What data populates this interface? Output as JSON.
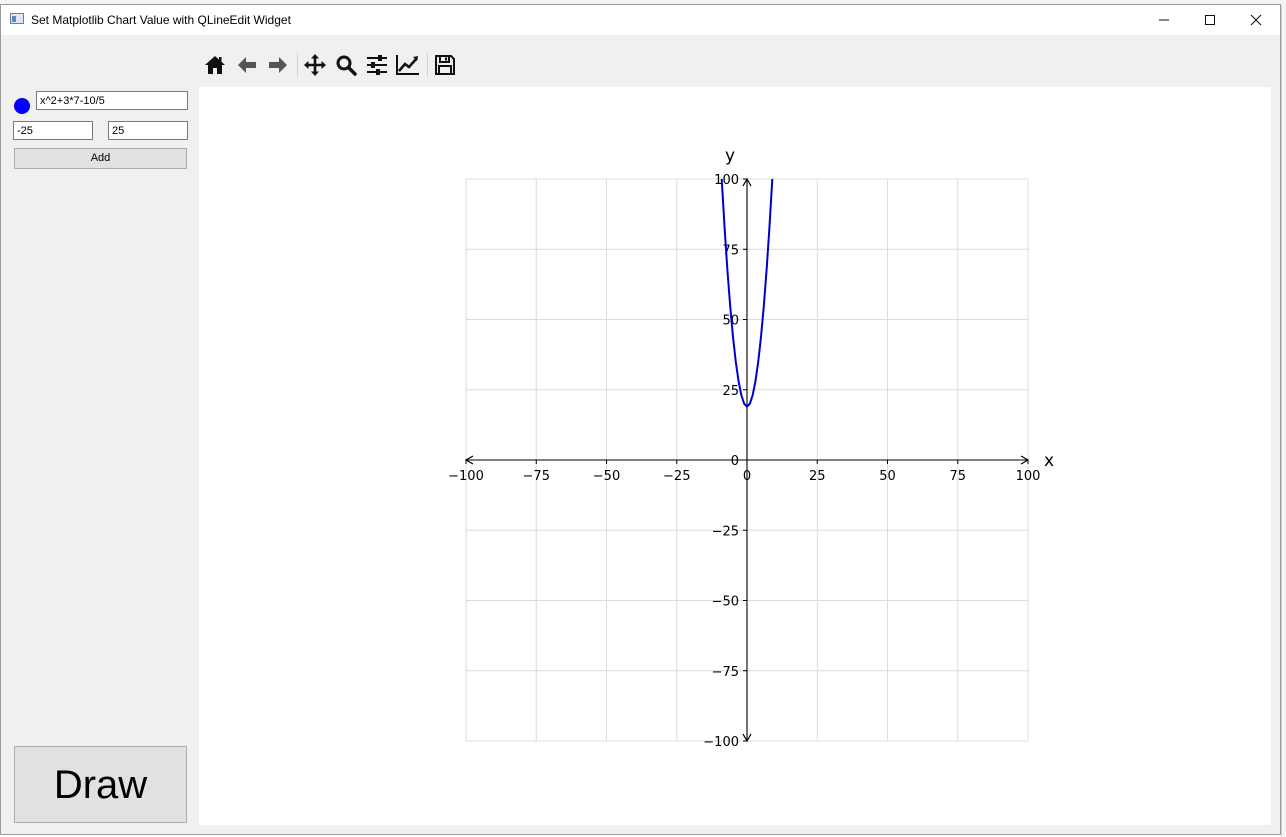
{
  "window": {
    "title": "Set Matplotlib Chart Value with QLineEdit Widget",
    "controls": {
      "minimize": "minimize",
      "maximize": "maximize",
      "close": "close"
    }
  },
  "toolbar": {
    "items": [
      "home-icon",
      "back-arrow-icon",
      "forward-arrow-icon",
      "pan-icon",
      "zoom-icon",
      "configure-subplots-icon",
      "edit-axis-icon",
      "save-icon"
    ]
  },
  "panel": {
    "series_color": "#0000ff",
    "expression": "x^2+3*7-10/5",
    "x_min": "-25",
    "x_max": "25",
    "add_label": "Add",
    "draw_label": "Draw"
  },
  "chart_data": {
    "type": "line",
    "title": "",
    "xlabel": "x",
    "ylabel": "y",
    "xlim": [
      -100,
      100
    ],
    "ylim": [
      -100,
      100
    ],
    "grid": true,
    "legend": "none",
    "xticks": [
      -100,
      -75,
      -50,
      -25,
      0,
      25,
      50,
      75,
      100
    ],
    "yticks": [
      -100,
      -75,
      -50,
      -25,
      0,
      25,
      50,
      75,
      100
    ],
    "tick_labels_x": [
      "−100",
      "−75",
      "−50",
      "−25",
      "0",
      "25",
      "50",
      "75",
      "100"
    ],
    "tick_labels_y": [
      "−100",
      "−75",
      "−50",
      "−25",
      "0",
      "25",
      "50",
      "75",
      "100"
    ],
    "series": [
      {
        "color": "#0000cc",
        "x": [
          -10,
          -9,
          -8,
          -7,
          -6,
          -5,
          -4,
          -3,
          -2,
          -1,
          0,
          1,
          2,
          3,
          4,
          5,
          6,
          7,
          8,
          9,
          10
        ],
        "y": [
          119,
          100,
          83,
          68,
          55,
          44,
          35,
          28,
          23,
          20,
          19,
          20,
          23,
          28,
          35,
          44,
          55,
          68,
          83,
          100,
          119
        ]
      }
    ]
  }
}
